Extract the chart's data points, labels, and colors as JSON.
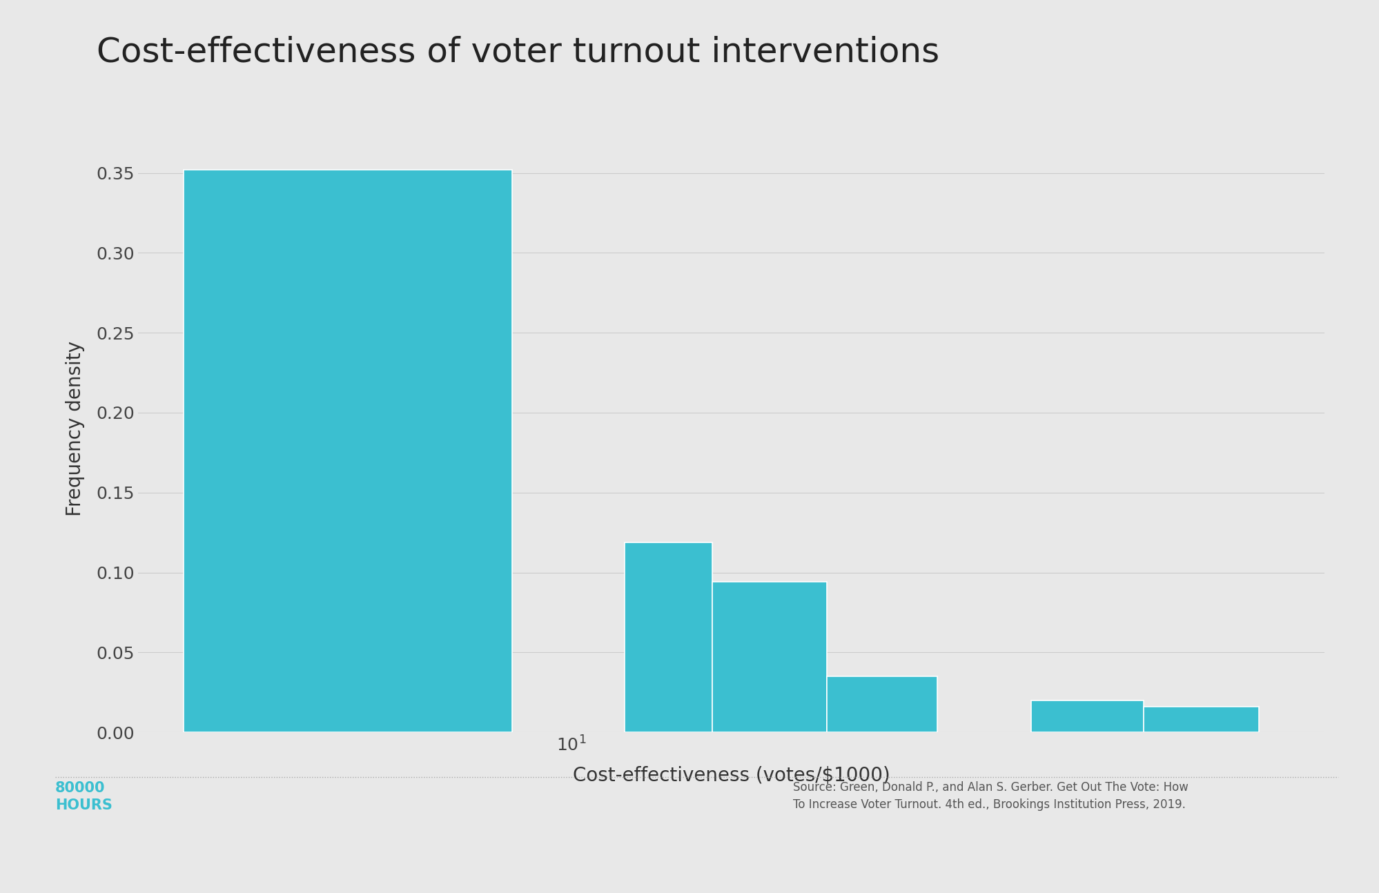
{
  "title": "Cost-effectiveness of voter turnout interventions",
  "xlabel": "Cost-effectiveness (votes/$1000)",
  "ylabel": "Frequency density",
  "bar_color": "#3bbfd0",
  "bar_edgecolor": "#ffffff",
  "background_color": "#e8e8e8",
  "title_fontsize": 36,
  "label_fontsize": 20,
  "tick_fontsize": 18,
  "source_text": "Source: Green, Donald P., and Alan S. Gerber. Get Out The Vote: How\nTo Increase Voter Turnout. 4th ed., Brookings Institution Press, 2019.",
  "brand_text": "80000\nHOURS",
  "brand_color": "#3bbfd0",
  "bins_left": [
    1.5,
    13.0,
    20.0,
    35.0,
    95.0,
    165.0
  ],
  "bins_right": [
    7.5,
    20.0,
    35.0,
    60.0,
    165.0,
    290.0
  ],
  "heights": [
    0.352,
    0.119,
    0.094,
    0.035,
    0.02,
    0.016
  ],
  "xlim_left": 1.2,
  "xlim_right": 400,
  "ylim": [
    0.0,
    0.38
  ],
  "yticks": [
    0.0,
    0.05,
    0.1,
    0.15,
    0.2,
    0.25,
    0.3,
    0.35
  ]
}
